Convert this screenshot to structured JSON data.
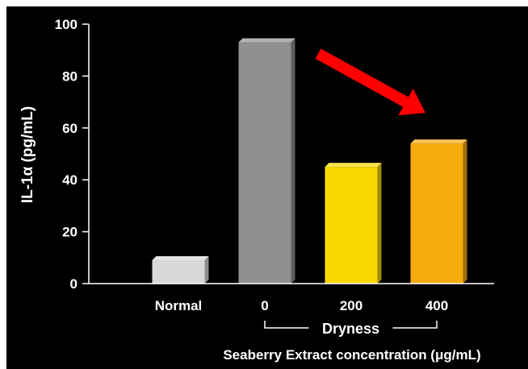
{
  "chart_data": {
    "type": "bar",
    "title": "",
    "ylabel": "IL-1α (pg/mL)",
    "xlabel": "Seaberry Extract concentration (μg/mL)",
    "categories": [
      "Normal",
      "0",
      "200",
      "400"
    ],
    "values": [
      9,
      93,
      45,
      54
    ],
    "bar_colors": [
      "#d8d8d8",
      "#909090",
      "#f7d700",
      "#f5ab0c"
    ],
    "ylim": [
      0,
      100
    ],
    "yticks": [
      0,
      20,
      40,
      60,
      80,
      100
    ],
    "grid": false,
    "legend": "none",
    "group_annotation": {
      "label": "Dryness",
      "categories": [
        "0",
        "200",
        "400"
      ]
    },
    "arrow_annotation": {
      "from_category": "0",
      "to_category": "400",
      "color": "#ff0000",
      "direction": "decrease"
    },
    "background": "#000000"
  }
}
